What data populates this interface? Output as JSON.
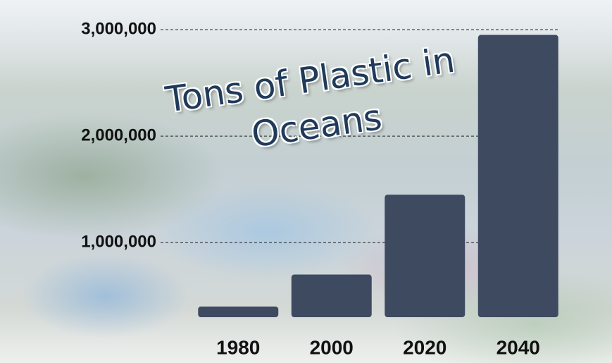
{
  "chart_data": {
    "type": "bar",
    "title": "Tons of Plastic in Oceans",
    "categories": [
      "1980",
      "2000",
      "2020",
      "2040"
    ],
    "values": [
      400000,
      700000,
      1450000,
      2950000
    ],
    "color": "#3d4a60",
    "ylim": [
      300000,
      3000000
    ],
    "yticks": [
      {
        "value": 1000000,
        "label": "1,000,000"
      },
      {
        "value": 2000000,
        "label": "2,000,000"
      },
      {
        "value": 3000000,
        "label": "3,000,000"
      }
    ],
    "grid": true
  }
}
